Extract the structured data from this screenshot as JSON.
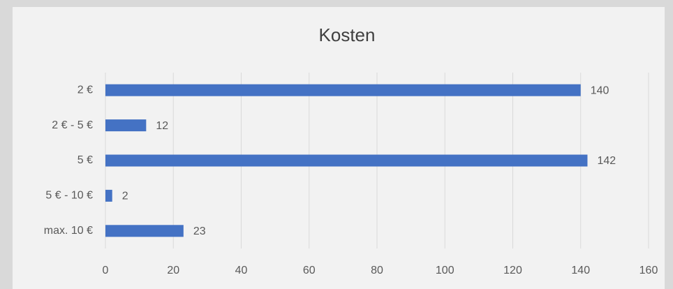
{
  "chart_data": {
    "type": "bar",
    "orientation": "horizontal",
    "title": "Kosten",
    "categories": [
      "2 €",
      "2 € - 5 €",
      "5 €",
      "5 € - 10 €",
      "max. 10 €"
    ],
    "values": [
      140,
      12,
      142,
      2,
      23
    ],
    "color": "#4472c4",
    "xlim": [
      0,
      160
    ],
    "xticks": [
      0,
      20,
      40,
      60,
      80,
      100,
      120,
      140,
      160
    ],
    "grid": true
  }
}
